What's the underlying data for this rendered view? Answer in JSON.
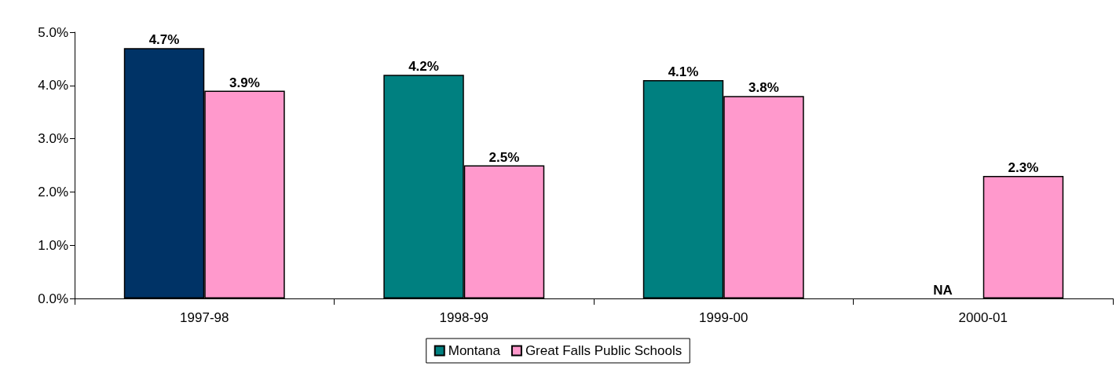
{
  "chart_data": {
    "type": "bar",
    "categories": [
      "1997-98",
      "1998-99",
      "1999-00",
      "2000-01"
    ],
    "series": [
      {
        "name": "Montana",
        "color": "#008080",
        "colors": [
          "#003366",
          "#008080",
          "#008080",
          "#008080"
        ],
        "values": [
          4.7,
          4.2,
          4.1,
          null
        ],
        "value_labels": [
          "4.7%",
          "4.2%",
          "4.1%",
          "NA"
        ]
      },
      {
        "name": "Great Falls Public Schools",
        "color": "#ff99cc",
        "values": [
          3.9,
          2.5,
          3.8,
          2.3
        ],
        "value_labels": [
          "3.9%",
          "2.5%",
          "3.8%",
          "2.3%"
        ]
      }
    ],
    "ylim": [
      0,
      5
    ],
    "yticks": [
      {
        "value": 0,
        "label": "0.0%"
      },
      {
        "value": 1,
        "label": "1.0%"
      },
      {
        "value": 2,
        "label": "2.0%"
      },
      {
        "value": 3,
        "label": "3.0%"
      },
      {
        "value": 4,
        "label": "4.0%"
      },
      {
        "value": 5,
        "label": "5.0%"
      }
    ],
    "grid": false,
    "legend": "bottom"
  }
}
